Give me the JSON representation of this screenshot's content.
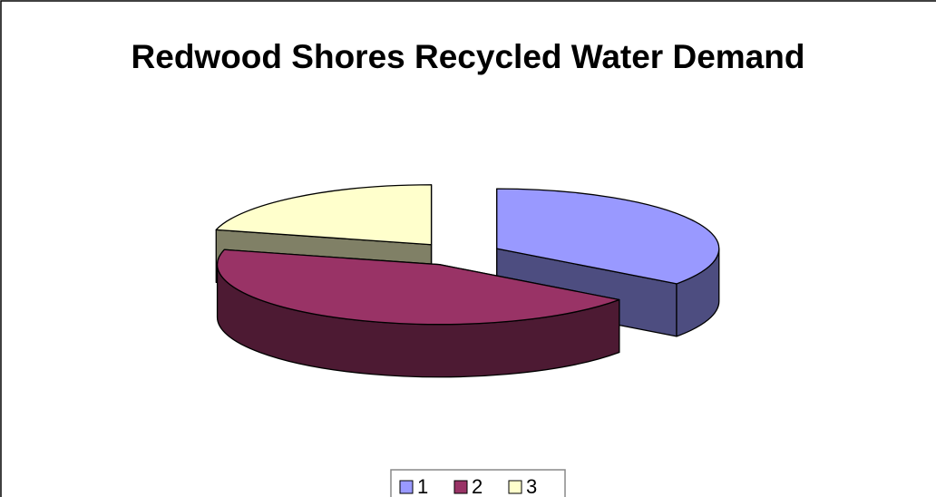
{
  "chart_data": {
    "type": "pie",
    "title": "Redwood Shores Recycled Water Demand",
    "categories": [
      "1",
      "2",
      "3"
    ],
    "values": [
      35,
      44,
      21
    ],
    "colors": [
      "#9999ff",
      "#993366",
      "#ffffcc"
    ],
    "side_colors": [
      "#4d4d80",
      "#4d1a33",
      "#808066"
    ],
    "three_d": true,
    "exploded": true,
    "legend": "bottom"
  }
}
